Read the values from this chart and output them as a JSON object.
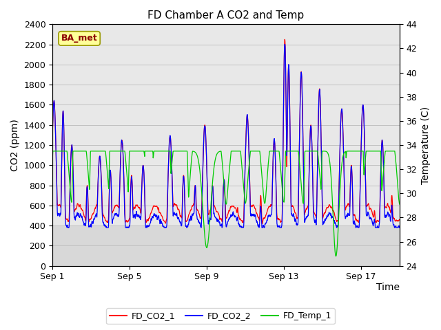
{
  "title": "FD Chamber A CO2 and Temp",
  "xlabel": "Time",
  "ylabel_left": "CO2 (ppm)",
  "ylabel_right": "Temperature (C)",
  "ylim_left": [
    0,
    2400
  ],
  "ylim_right": [
    24,
    44
  ],
  "yticks_left": [
    0,
    200,
    400,
    600,
    800,
    1000,
    1200,
    1400,
    1600,
    1800,
    2000,
    2200,
    2400
  ],
  "yticks_right": [
    24,
    26,
    28,
    30,
    32,
    34,
    36,
    38,
    40,
    42,
    44
  ],
  "xtick_labels": [
    "Sep 1",
    "Sep 5",
    "Sep 9",
    "Sep 13",
    "Sep 17"
  ],
  "xtick_positions": [
    0,
    4,
    8,
    12,
    16
  ],
  "total_days": 18,
  "annotation_text": "BA_met",
  "annotation_box_facecolor": "#FFFF99",
  "annotation_box_edgecolor": "#999900",
  "annotation_text_color": "#8B0000",
  "legend_labels": [
    "FD_CO2_1",
    "FD_CO2_2",
    "FD_Temp_1"
  ],
  "co2_1_color": "red",
  "co2_2_color": "blue",
  "temp_color": "#00cc00",
  "grid_color": "#bbbbbb",
  "bg_outer_color": "#d8d8d8",
  "bg_inner_color": "#e8e8e8",
  "bg_inner_ymin": 400,
  "bg_inner_ymax": 2400,
  "linewidth": 0.9
}
